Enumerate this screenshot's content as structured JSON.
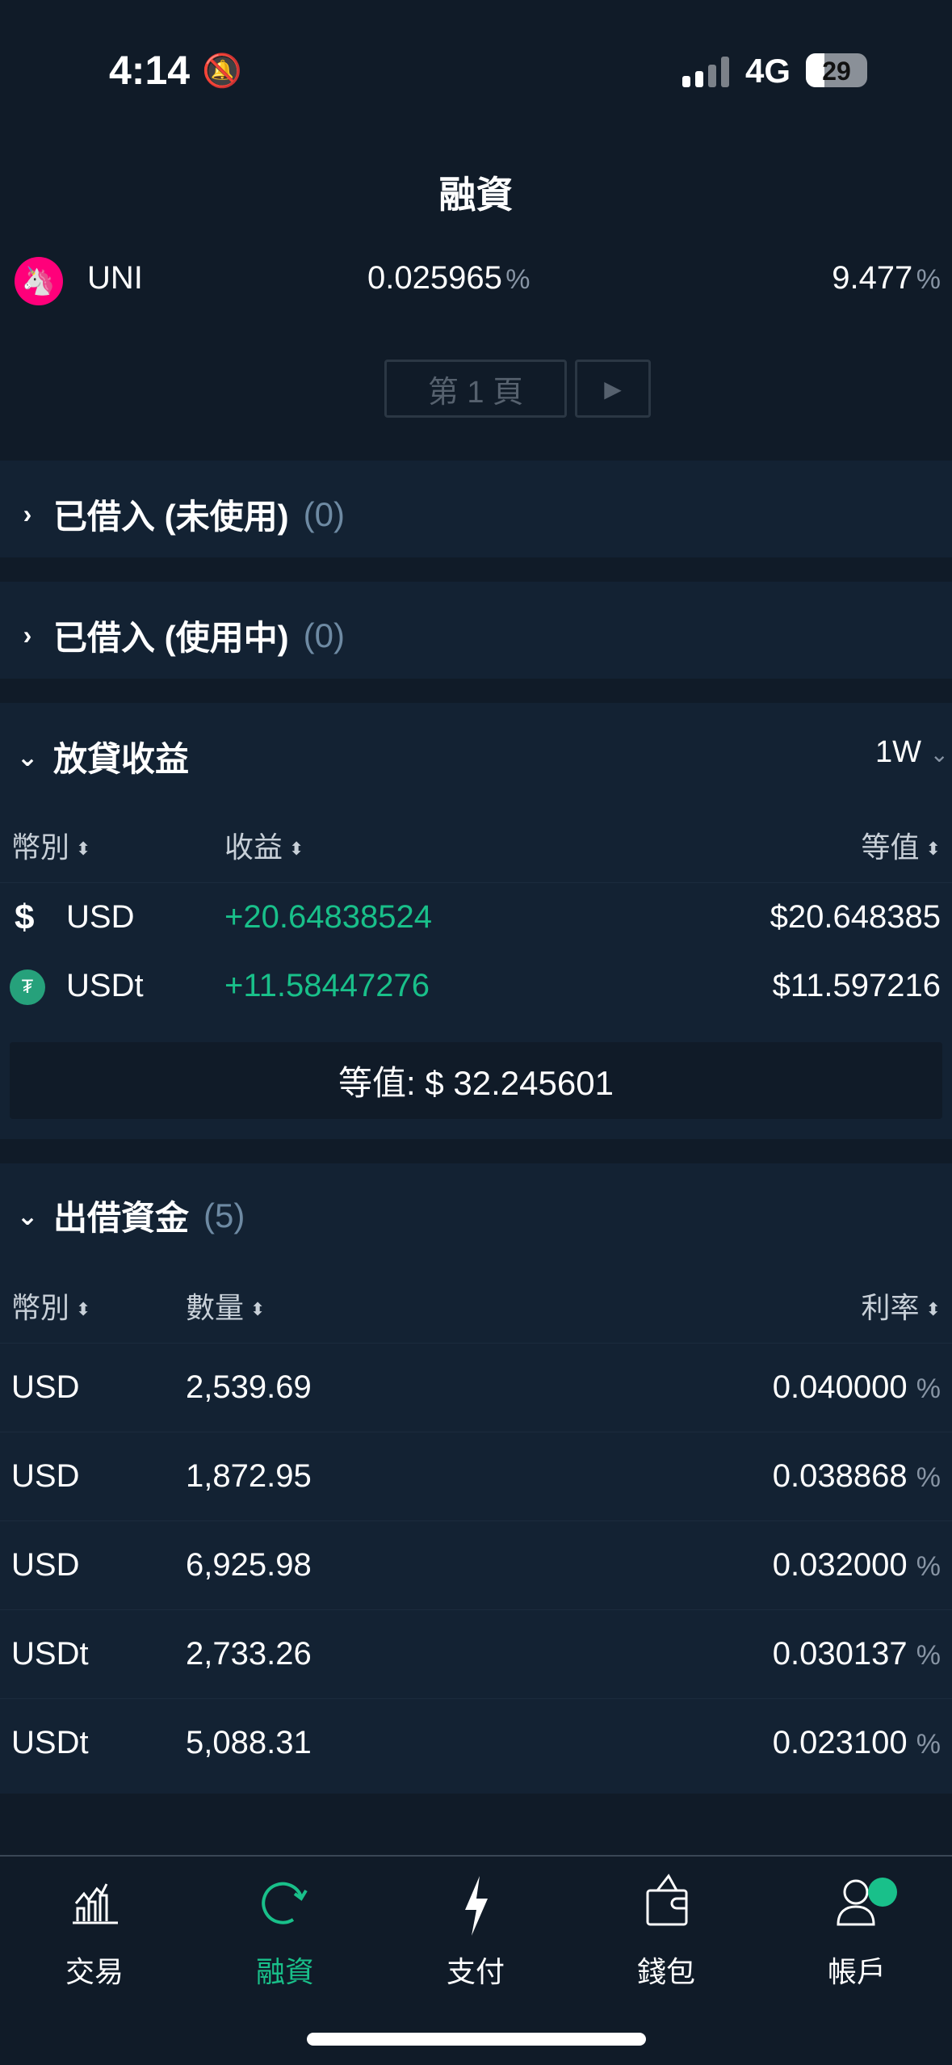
{
  "status": {
    "time": "4:14",
    "network": "4G",
    "battery": "29",
    "battery_level": 29
  },
  "header": {
    "title": "融資"
  },
  "uni_row": {
    "symbol": "UNI",
    "rate": "0.025965",
    "rate_unit": "%",
    "apr": "9.477",
    "apr_unit": "%"
  },
  "pager": {
    "label": "第 1 頁",
    "next": "▶"
  },
  "borrowed_unused": {
    "title": "已借入 (未使用)",
    "count": "(0)"
  },
  "borrowed_used": {
    "title": "已借入 (使用中)",
    "count": "(0)"
  },
  "lending_earnings": {
    "title": "放貸收益",
    "period": "1W",
    "columns": [
      "幣別",
      "收益",
      "等值"
    ],
    "rows": [
      {
        "currency": "USD",
        "earning": "+20.64838524",
        "value": "$20.648385",
        "icon": "dollar-icon"
      },
      {
        "currency": "USDt",
        "earning": "+11.58447276",
        "value": "$11.597216",
        "icon": "tether-icon"
      }
    ],
    "total": "等值: $ 32.245601"
  },
  "offers": {
    "title": "出借資金",
    "count": "(5)",
    "columns": [
      "幣別",
      "數量",
      "利率"
    ],
    "rows": [
      {
        "currency": "USD",
        "amount": "2,539.69",
        "rate": "0.040000",
        "unit": "%"
      },
      {
        "currency": "USD",
        "amount": "1,872.95",
        "rate": "0.038868",
        "unit": "%"
      },
      {
        "currency": "USD",
        "amount": "6,925.98",
        "rate": "0.032000",
        "unit": "%"
      },
      {
        "currency": "USDt",
        "amount": "2,733.26",
        "rate": "0.030137",
        "unit": "%"
      },
      {
        "currency": "USDt",
        "amount": "5,088.31",
        "rate": "0.023100",
        "unit": "%"
      }
    ]
  },
  "tabs": [
    {
      "label": "交易",
      "icon": "chart-icon"
    },
    {
      "label": "融資",
      "icon": "refresh-icon",
      "active": true
    },
    {
      "label": "支付",
      "icon": "lightning-icon"
    },
    {
      "label": "錢包",
      "icon": "wallet-icon"
    },
    {
      "label": "帳戶",
      "icon": "user-icon"
    }
  ],
  "colors": {
    "background": "#101b28",
    "panel": "#132233",
    "accent": "#19c08a",
    "uni": "#ff007a"
  }
}
